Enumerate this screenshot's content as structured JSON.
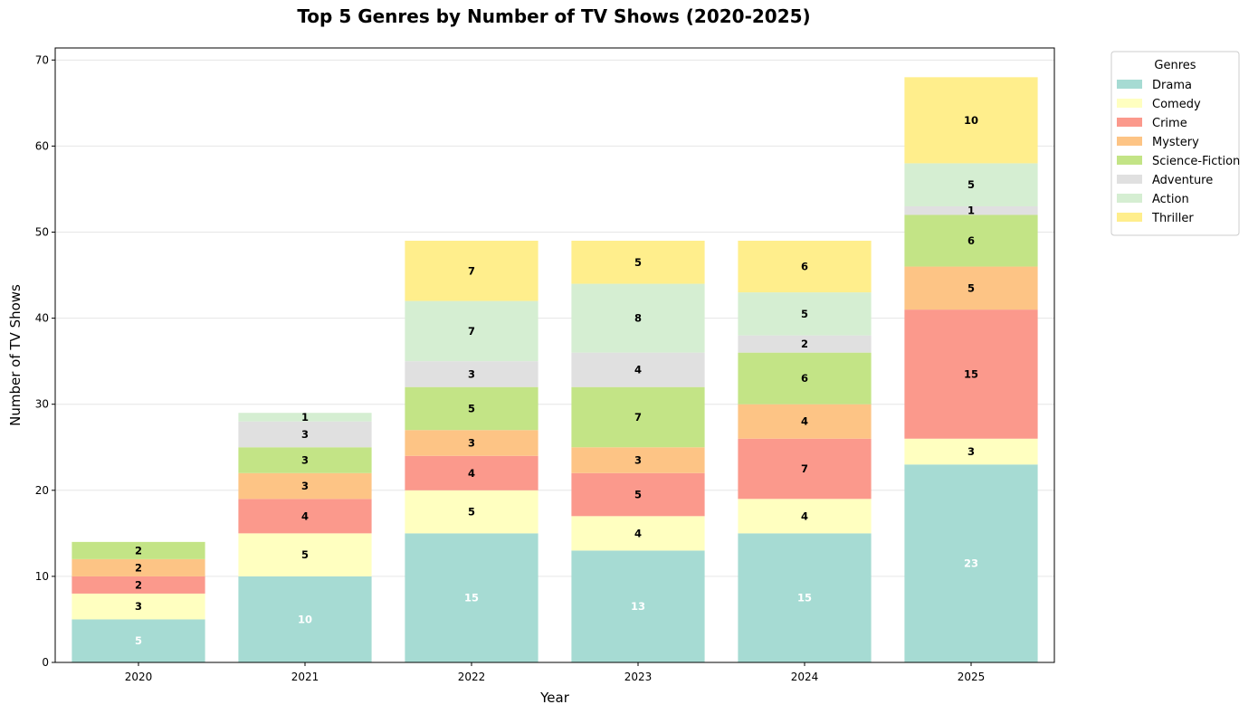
{
  "chart_data": {
    "type": "bar",
    "stacked": true,
    "title": "Top 5 Genres by Number of TV Shows (2020-2025)",
    "xlabel": "Year",
    "ylabel": "Number of TV Shows",
    "ylim": [
      0,
      71.4
    ],
    "yticks": [
      0,
      10,
      20,
      30,
      40,
      50,
      60,
      70
    ],
    "grid": "y",
    "legend_title": "Genres",
    "legend_position": "outside-top-right",
    "categories": [
      "2020",
      "2021",
      "2022",
      "2023",
      "2024",
      "2025"
    ],
    "series": [
      {
        "name": "Drama",
        "color": "#a6dbd3",
        "label_color": "#ffffff",
        "values": [
          5,
          10,
          15,
          13,
          15,
          23
        ]
      },
      {
        "name": "Comedy",
        "color": "#ffffc0",
        "label_color": "#000000",
        "values": [
          3,
          5,
          5,
          4,
          4,
          3
        ]
      },
      {
        "name": "Crime",
        "color": "#fb998c",
        "label_color": "#000000",
        "values": [
          2,
          4,
          4,
          5,
          7,
          15
        ]
      },
      {
        "name": "Mystery",
        "color": "#fdc485",
        "label_color": "#000000",
        "values": [
          2,
          3,
          3,
          3,
          4,
          5
        ]
      },
      {
        "name": "Science-Fiction",
        "color": "#c3e486",
        "label_color": "#000000",
        "values": [
          2,
          3,
          5,
          7,
          6,
          6
        ]
      },
      {
        "name": "Adventure",
        "color": "#e0e0e0",
        "label_color": "#000000",
        "values": [
          0,
          3,
          3,
          4,
          2,
          1
        ]
      },
      {
        "name": "Action",
        "color": "#d5eed2",
        "label_color": "#000000",
        "values": [
          0,
          1,
          7,
          8,
          5,
          5
        ]
      },
      {
        "name": "Thriller",
        "color": "#ffee8c",
        "label_color": "#000000",
        "values": [
          0,
          0,
          7,
          5,
          6,
          10
        ]
      }
    ]
  }
}
